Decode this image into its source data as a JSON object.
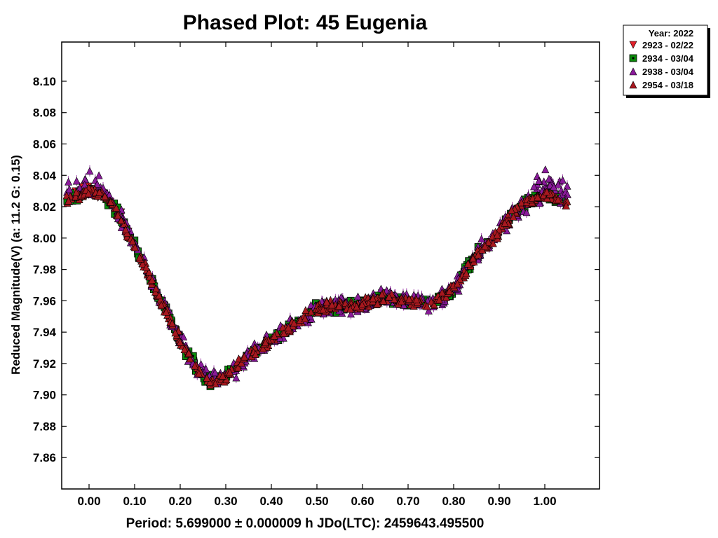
{
  "chart_data": {
    "type": "scatter",
    "title": "Phased Plot: 45 Eugenia",
    "ylabel": "Reduced Magnitude(V)   (a: 11.2  G: 0.15)",
    "xlabel": "Period: 5.699000 ± 0.000009 h  JDo(LTC): 2459643.495500",
    "xlim": [
      -0.06,
      1.12
    ],
    "ylim": [
      8.125,
      7.84
    ],
    "y_inverted": true,
    "grid": false,
    "x_ticks": [
      "0.00",
      "0.10",
      "0.20",
      "0.30",
      "0.40",
      "0.50",
      "0.60",
      "0.70",
      "0.80",
      "0.90",
      "1.00"
    ],
    "y_ticks": [
      "7.86",
      "7.88",
      "7.90",
      "7.92",
      "7.94",
      "7.96",
      "7.98",
      "8.00",
      "8.02",
      "8.04",
      "8.06",
      "8.08",
      "8.10"
    ],
    "legend": {
      "title": "Year: 2022",
      "placement": "outside-top-right",
      "entries": [
        {
          "label": "2923 - 02/22",
          "marker": "triangle-down",
          "color": "#e0202a"
        },
        {
          "label": "2934 - 03/04",
          "marker": "square",
          "color": "#0a8a0a"
        },
        {
          "label": "2938 - 03/04",
          "marker": "triangle-up",
          "color": "#8a1a9a"
        },
        {
          "label": "2954 - 03/18",
          "marker": "triangle-up",
          "color": "#a8181f"
        }
      ]
    },
    "curve": {
      "phase": [
        -0.05,
        0.0,
        0.03,
        0.06,
        0.1,
        0.15,
        0.2,
        0.24,
        0.27,
        0.3,
        0.35,
        0.4,
        0.45,
        0.5,
        0.55,
        0.6,
        0.65,
        0.7,
        0.75,
        0.8,
        0.85,
        0.9,
        0.95,
        1.0,
        1.05
      ],
      "magnitude": [
        8.025,
        8.03,
        8.028,
        8.018,
        7.995,
        7.965,
        7.935,
        7.915,
        7.908,
        7.912,
        7.925,
        7.935,
        7.945,
        7.955,
        7.957,
        7.958,
        7.962,
        7.96,
        7.958,
        7.968,
        7.99,
        8.005,
        8.022,
        8.028,
        8.022
      ]
    },
    "series": [
      {
        "name": "2923 - 02/22",
        "phase_range": [
          -0.05,
          0.12
        ],
        "scatter": 0.006
      },
      {
        "name": "2934 - 03/04",
        "phase_range": [
          -0.05,
          1.05
        ],
        "scatter": 0.005
      },
      {
        "name": "2938 - 03/04",
        "phase_range": [
          -0.05,
          1.05
        ],
        "scatter": 0.008
      },
      {
        "name": "2954 - 03/18",
        "phase_range": [
          -0.05,
          1.05
        ],
        "scatter": 0.005
      }
    ]
  }
}
